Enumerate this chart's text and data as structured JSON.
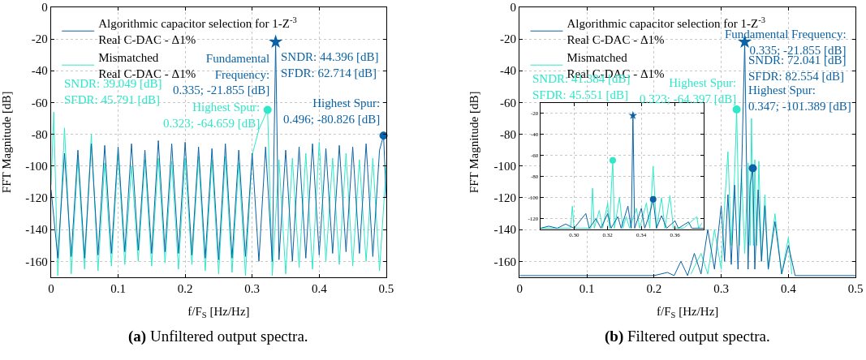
{
  "chart_data": [
    {
      "type": "line",
      "title": "(a) Unfiltered output spectra.",
      "xlabel": "f/F$_{S}$ [Hz/Hz]",
      "ylabel": "FFT Magnitude [dB]",
      "xlim": [
        0,
        0.5
      ],
      "ylim": [
        -170,
        0
      ],
      "xticks": [
        0,
        0.1,
        0.2,
        0.3,
        0.4,
        0.5
      ],
      "yticks": [
        0,
        -20,
        -40,
        -60,
        -80,
        -100,
        -120,
        -140,
        -160
      ],
      "grid": true,
      "legend": "top left",
      "series": [
        {
          "name": "Mismatched\nReal C-DAC - Δ1%",
          "color": "#2ee8c8",
          "x": [
            0,
            0.004,
            0.01,
            0.02,
            0.03,
            0.04,
            0.05,
            0.06,
            0.07,
            0.08,
            0.09,
            0.1,
            0.11,
            0.12,
            0.13,
            0.14,
            0.15,
            0.16,
            0.17,
            0.18,
            0.19,
            0.2,
            0.21,
            0.22,
            0.23,
            0.24,
            0.25,
            0.26,
            0.27,
            0.28,
            0.29,
            0.3,
            0.31,
            0.323,
            0.33,
            0.34,
            0.35,
            0.36,
            0.37,
            0.38,
            0.39,
            0.4,
            0.41,
            0.42,
            0.43,
            0.44,
            0.45,
            0.46,
            0.47,
            0.48,
            0.49,
            0.5
          ],
          "values": [
            -112,
            -66,
            -169,
            -76,
            -168,
            -95,
            -165,
            -80,
            -166,
            -98,
            -163,
            -92,
            -162,
            -100,
            -160,
            -96,
            -163,
            -95,
            -161,
            -97,
            -165,
            -95,
            -162,
            -94,
            -166,
            -96,
            -168,
            -94,
            -167,
            -98,
            -169,
            -93,
            -77,
            -64.659,
            -169,
            -96,
            -168,
            -95,
            -164,
            -92,
            -165,
            -85,
            -160,
            -95,
            -162,
            -92,
            -163,
            -96,
            -160,
            -95,
            -166,
            -100
          ]
        },
        {
          "name": "Algorithmic capacitor selection for 1-Z$^{-3}$\nReal C-DAC - Δ1%",
          "color": "#0a63a6",
          "x": [
            0,
            0.01,
            0.02,
            0.03,
            0.04,
            0.05,
            0.06,
            0.07,
            0.08,
            0.09,
            0.1,
            0.11,
            0.12,
            0.13,
            0.14,
            0.15,
            0.16,
            0.17,
            0.18,
            0.19,
            0.2,
            0.21,
            0.22,
            0.23,
            0.24,
            0.25,
            0.26,
            0.27,
            0.28,
            0.29,
            0.3,
            0.31,
            0.32,
            0.33,
            0.335,
            0.34,
            0.35,
            0.36,
            0.37,
            0.38,
            0.39,
            0.4,
            0.41,
            0.42,
            0.43,
            0.44,
            0.45,
            0.46,
            0.47,
            0.48,
            0.49,
            0.496,
            0.5
          ],
          "values": [
            -115,
            -158,
            -92,
            -157,
            -90,
            -158,
            -86,
            -156,
            -87,
            -155,
            -88,
            -154,
            -86,
            -153,
            -90,
            -155,
            -84,
            -154,
            -86,
            -155,
            -85,
            -156,
            -88,
            -158,
            -89,
            -159,
            -86,
            -158,
            -90,
            -157,
            -92,
            -160,
            -88,
            -160,
            -21.855,
            -159,
            -90,
            -160,
            -88,
            -158,
            -86,
            -156,
            -89,
            -155,
            -87,
            -154,
            -88,
            -155,
            -86,
            -157,
            -90,
            -80.826,
            -120
          ]
        },
        {
          "type": "scatter",
          "marker": "circle",
          "color": "#2ee8c8",
          "x": [
            0.323
          ],
          "values": [
            -64.659
          ]
        },
        {
          "type": "scatter",
          "marker": "star",
          "color": "#0a63a6",
          "x": [
            0.335
          ],
          "values": [
            -21.855
          ]
        },
        {
          "type": "scatter",
          "marker": "circle",
          "color": "#0a63a6",
          "x": [
            0.496
          ],
          "values": [
            -80.826
          ]
        }
      ],
      "annotations": [
        "SNDR: 39.049 [dB]\nSFDR: 45.791 [dB]",
        {
          "text": "Highest Spur:\n0.323; -64.659 [dB]",
          "x": 0.323,
          "y": -64.659
        },
        {
          "text": "Fundamental\nFrequency:\n0.335; -21.855 [dB]",
          "x": 0.335,
          "y": -21.855
        },
        "SNDR: 44.396 [dB]\nSFDR: 62.714 [dB]",
        {
          "text": "Highest Spur:\n0.496; -80.826 [dB]",
          "x": 0.496,
          "y": -80.826
        }
      ]
    },
    {
      "type": "line",
      "title": "(b) Filtered output spectra.",
      "xlabel": "f/F$_{S}$ [Hz/Hz]",
      "ylabel": "FFT Magnitude [dB]",
      "xlim": [
        0,
        0.5
      ],
      "ylim": [
        -170,
        0
      ],
      "xticks": [
        0,
        0.1,
        0.2,
        0.3,
        0.4,
        0.5
      ],
      "yticks": [
        0,
        -20,
        -40,
        -60,
        -80,
        -100,
        -120,
        -140,
        -160
      ],
      "grid": true,
      "legend": "top left",
      "series": [
        {
          "name": "Mismatched\nReal C-DAC - Δ1%",
          "color": "#2ee8c8",
          "x": [
            0.255,
            0.27,
            0.28,
            0.29,
            0.3,
            0.305,
            0.31,
            0.315,
            0.32,
            0.323,
            0.327,
            0.33,
            0.335,
            0.34,
            0.343,
            0.345,
            0.348,
            0.35,
            0.353,
            0.356,
            0.36,
            0.365,
            0.37,
            0.38,
            0.39,
            0.4,
            0.405
          ],
          "values": [
            -168,
            -155,
            -168,
            -140,
            -165,
            -125,
            -91,
            -150,
            -105,
            -64.397,
            -150,
            -102,
            -155,
            -98,
            -150,
            -70,
            -150,
            -96,
            -150,
            -97,
            -160,
            -118,
            -165,
            -130,
            -168,
            -145,
            -168
          ]
        },
        {
          "name": "Algorithmic capacitor selection for 1-Z$^{-3}$\nReal C-DAC - Δ1%",
          "color": "#0a63a6",
          "x": [
            0,
            0.2,
            0.22,
            0.23,
            0.24,
            0.25,
            0.26,
            0.27,
            0.28,
            0.29,
            0.3,
            0.305,
            0.31,
            0.315,
            0.32,
            0.325,
            0.33,
            0.335,
            0.34,
            0.343,
            0.347,
            0.35,
            0.355,
            0.36,
            0.365,
            0.37,
            0.38,
            0.39,
            0.4,
            0.41,
            0.5
          ],
          "values": [
            -169,
            -169,
            -167,
            -169,
            -160,
            -169,
            -155,
            -168,
            -140,
            -165,
            -125,
            -160,
            -118,
            -162,
            -112,
            -165,
            -110,
            -21.855,
            -165,
            -112,
            -101.389,
            -165,
            -115,
            -160,
            -125,
            -165,
            -135,
            -168,
            -150,
            -169,
            -169
          ]
        },
        {
          "type": "scatter",
          "marker": "circle",
          "color": "#2ee8c8",
          "x": [
            0.323
          ],
          "values": [
            -64.397
          ]
        },
        {
          "type": "scatter",
          "marker": "star",
          "color": "#0a63a6",
          "x": [
            0.335
          ],
          "values": [
            -21.855
          ]
        },
        {
          "type": "scatter",
          "marker": "circle",
          "color": "#0a63a6",
          "x": [
            0.347
          ],
          "values": [
            -101.389
          ]
        }
      ],
      "annotations": [
        "SNDR: 41.384 [dB]\nSFDR: 45.551 [dB]",
        {
          "text": "Highest Spur:\n0.323; -64.397 [dB]",
          "x": 0.323,
          "y": -64.397
        },
        {
          "text": "Fundamental Frequency:\n0.335; -21.855 [dB]",
          "x": 0.335,
          "y": -21.855
        },
        "SNDR: 72.041 [dB]\nSFDR: 82.554 [dB]",
        "Highest Spur:\n0.347; -101.389 [dB]"
      ]
    },
    {
      "type": "line",
      "xlim": [
        0.28,
        0.377
      ],
      "ylim": [
        -130,
        -10
      ],
      "xticks": [
        {
          "value": 0.3,
          "label": "0.30"
        },
        {
          "value": 0.32,
          "label": "0.32"
        },
        {
          "value": 0.34,
          "label": "0.34"
        },
        {
          "value": 0.36,
          "label": "0.36"
        }
      ],
      "yticks": [
        -20,
        -40,
        -60,
        -80,
        -100,
        -120
      ],
      "grid": true,
      "series": [
        {
          "color": "#2ee8c8",
          "x": [
            0.28,
            0.298,
            0.299,
            0.3,
            0.31,
            0.311,
            0.312,
            0.315,
            0.317,
            0.32,
            0.321,
            0.323,
            0.324,
            0.327,
            0.329,
            0.331,
            0.333,
            0.337,
            0.339,
            0.343,
            0.345,
            0.347,
            0.349,
            0.352,
            0.354,
            0.357,
            0.359,
            0.365,
            0.373,
            0.374,
            0.376
          ],
          "values": [
            -129,
            -129,
            -108,
            -129,
            -129,
            -91,
            -129,
            -112,
            -129,
            -105,
            -129,
            -64.397,
            -129,
            -100,
            -129,
            -118,
            -129,
            -110,
            -129,
            -105,
            -129,
            -70,
            -129,
            -100,
            -129,
            -98,
            -129,
            -129,
            -118,
            -129,
            -124
          ]
        },
        {
          "color": "#0a63a6",
          "x": [
            0.28,
            0.285,
            0.29,
            0.295,
            0.3,
            0.307,
            0.309,
            0.313,
            0.316,
            0.32,
            0.322,
            0.326,
            0.328,
            0.332,
            0.334,
            0.335,
            0.336,
            0.34,
            0.342,
            0.345,
            0.347,
            0.349,
            0.352,
            0.355,
            0.36,
            0.362,
            0.368,
            0.37,
            0.377
          ],
          "values": [
            -129,
            -127,
            -129,
            -125,
            -129,
            -115,
            -129,
            -120,
            -129,
            -115,
            -129,
            -118,
            -129,
            -108,
            -129,
            -21.855,
            -129,
            -110,
            -129,
            -115,
            -101.389,
            -129,
            -117,
            -129,
            -122,
            -129,
            -123,
            -129,
            -129
          ]
        },
        {
          "type": "scatter",
          "marker": "circle",
          "color": "#2ee8c8",
          "x": [
            0.323
          ],
          "values": [
            -64.397
          ]
        },
        {
          "type": "scatter",
          "marker": "star",
          "color": "#0a63a6",
          "x": [
            0.335
          ],
          "values": [
            -21.855
          ]
        },
        {
          "type": "scatter",
          "marker": "circle",
          "color": "#0a63a6",
          "x": [
            0.347
          ],
          "values": [
            -101.389
          ]
        }
      ]
    }
  ]
}
